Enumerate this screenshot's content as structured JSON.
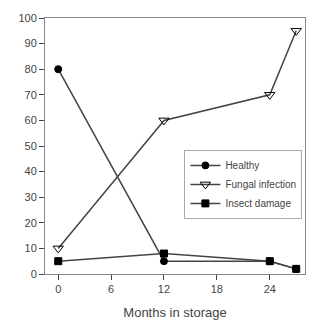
{
  "chart_data": {
    "type": "line",
    "x": [
      0,
      12,
      24,
      27
    ],
    "series": [
      {
        "name": "Healthy",
        "color": "#444444",
        "marker": "circle",
        "values": [
          80,
          5,
          5,
          2
        ]
      },
      {
        "name": "Fungal infection",
        "color": "#444444",
        "marker": "triangle-down-open",
        "values": [
          10,
          60,
          70,
          95
        ]
      },
      {
        "name": "Insect damage",
        "color": "#444444",
        "marker": "square",
        "values": [
          5,
          8,
          5,
          2
        ]
      }
    ],
    "xlabel": "Months in storage",
    "xlim": [
      -1.5,
      28
    ],
    "xticks": [
      0,
      6,
      12,
      18,
      24
    ],
    "ylim": [
      0,
      100
    ],
    "yticks": [
      0,
      10,
      20,
      30,
      40,
      50,
      60,
      70,
      80,
      90,
      100
    ],
    "grid": false,
    "legend": "right",
    "background_color": "#ffffff"
  }
}
